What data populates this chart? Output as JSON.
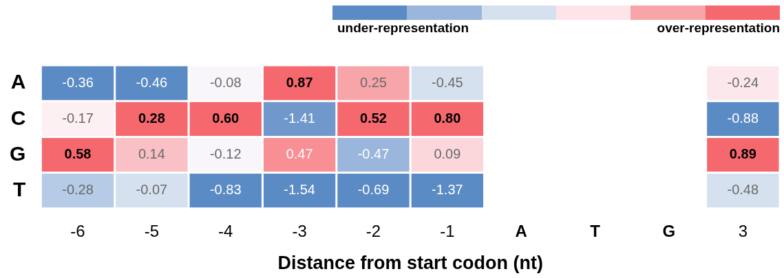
{
  "chart_data": {
    "type": "heatmap",
    "xlabel": "Distance from start codon (nt)",
    "categories": [
      "-6",
      "-5",
      "-4",
      "-3",
      "-2",
      "-1",
      "A",
      "T",
      "G",
      "3"
    ],
    "y_categories": [
      "A",
      "C",
      "G",
      "T"
    ],
    "cells": [
      [
        -0.36,
        -0.46,
        -0.08,
        0.87,
        0.25,
        -0.45,
        null,
        null,
        null,
        -0.24
      ],
      [
        -0.17,
        0.28,
        0.6,
        -1.41,
        0.52,
        0.8,
        null,
        null,
        null,
        -0.88
      ],
      [
        0.58,
        0.14,
        -0.12,
        0.47,
        -0.47,
        0.09,
        null,
        null,
        null,
        0.89
      ],
      [
        -0.28,
        -0.07,
        -0.83,
        -1.54,
        -0.69,
        -1.37,
        null,
        null,
        null,
        -0.48
      ]
    ],
    "colors": [
      [
        "#5b8bc5",
        "#5b8bc5",
        "#f8f6fa",
        "#f4686e",
        "#f7a5a9",
        "#d6e1ef",
        null,
        null,
        null,
        "#fce8ec"
      ],
      [
        "#fcf0f3",
        "#f4686e",
        "#f4686e",
        "#7098cc",
        "#f4686e",
        "#f4686e",
        null,
        null,
        null,
        "#5b8bc5"
      ],
      [
        "#f4686e",
        "#f9c0c6",
        "#f8f6fa",
        "#f78f95",
        "#9ab6dc",
        "#fbd7dc",
        null,
        null,
        null,
        "#f4686e"
      ],
      [
        "#b5cbe6",
        "#d6e1ef",
        "#5b8bc5",
        "#5b8bc5",
        "#5b8bc5",
        "#5b8bc5",
        null,
        null,
        null,
        "#d6e1ef"
      ]
    ],
    "cell_labels": [
      [
        "-0.36",
        "-0.46",
        "-0.08",
        "0.87",
        "0.25",
        "-0.45",
        null,
        null,
        null,
        "-0.24"
      ],
      [
        "-0.17",
        "0.28",
        "0.60",
        "-1.41",
        "0.52",
        "0.80",
        null,
        null,
        null,
        "-0.88"
      ],
      [
        "0.58",
        "0.14",
        "-0.12",
        "0.47",
        "-0.47",
        "0.09",
        null,
        null,
        null,
        "0.89"
      ],
      [
        "-0.28",
        "-0.07",
        "-0.83",
        "-1.54",
        "-0.69",
        "-1.37",
        null,
        null,
        null,
        "-0.48"
      ]
    ],
    "data_labels": true,
    "annotations": [
      "under-representation",
      "over-representation"
    ]
  }
}
